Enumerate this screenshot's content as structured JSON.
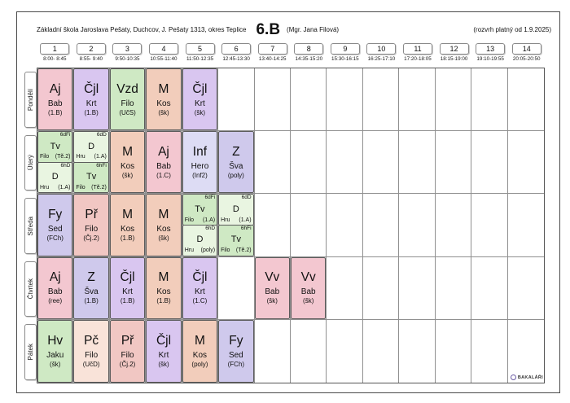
{
  "header": {
    "school": "Základní škola Jaroslava Pešaty, Duchcov, J. Pešaty 1313, okres Teplice",
    "class_name": "6.B",
    "teacher": "(Mgr. Jana Filová)",
    "validity": "(rozvrh platný od 1.9.2025)"
  },
  "colors": {
    "pink": "#f3c7d0",
    "purple": "#d9c6f0",
    "lavender": "#cfc9ec",
    "green": "#cfe9c4",
    "palegreen": "#e9f5e1",
    "salmon": "#f2cdbb",
    "periwinkle": "#dddcf4",
    "peach": "#f9e3d9",
    "rose": "#f1c7c3"
  },
  "periods": [
    {
      "num": "1",
      "time": "8:00- 8:45"
    },
    {
      "num": "2",
      "time": "8:55- 9:40"
    },
    {
      "num": "3",
      "time": "9:50-10:35"
    },
    {
      "num": "4",
      "time": "10:55-11:40"
    },
    {
      "num": "5",
      "time": "11:50-12:35"
    },
    {
      "num": "6",
      "time": "12:45-13:30"
    },
    {
      "num": "7",
      "time": "13:40-14:25"
    },
    {
      "num": "8",
      "time": "14:35-15:20"
    },
    {
      "num": "9",
      "time": "15:30-16:15"
    },
    {
      "num": "10",
      "time": "16:25-17:10"
    },
    {
      "num": "11",
      "time": "17:20-18:05"
    },
    {
      "num": "12",
      "time": "18:15-19:00"
    },
    {
      "num": "13",
      "time": "19:10-19:55"
    },
    {
      "num": "14",
      "time": "20:05-20:50"
    }
  ],
  "days": [
    {
      "label": "Pondělí",
      "lessons": [
        {
          "col": 1,
          "subject": "Aj",
          "teacher": "Bab",
          "room": "(1.B)",
          "color": "pink"
        },
        {
          "col": 2,
          "subject": "Čjl",
          "teacher": "Krt",
          "room": "(1.B)",
          "color": "purple"
        },
        {
          "col": 3,
          "subject": "Vzd",
          "teacher": "Filo",
          "room": "(UčS)",
          "color": "green"
        },
        {
          "col": 4,
          "subject": "M",
          "teacher": "Kos",
          "room": "(šk)",
          "color": "salmon"
        },
        {
          "col": 5,
          "subject": "Čjl",
          "teacher": "Krt",
          "room": "(šk)",
          "color": "purple"
        }
      ]
    },
    {
      "label": "Úterý",
      "lessons": [
        {
          "col": 1,
          "split": true,
          "top": {
            "group": "6dFi",
            "subject": "Tv",
            "teacher": "Filo",
            "room": "(Tě.2)",
            "color": "green"
          },
          "bottom": {
            "group": "6hD",
            "subject": "D",
            "teacher": "Hru",
            "room": "(1.A)",
            "color": "palegreen"
          }
        },
        {
          "col": 2,
          "split": true,
          "top": {
            "group": "6dD",
            "subject": "D",
            "teacher": "Hru",
            "room": "(1.A)",
            "color": "palegreen"
          },
          "bottom": {
            "group": "6hFi",
            "subject": "Tv",
            "teacher": "Filo",
            "room": "(Tě.2)",
            "color": "green"
          }
        },
        {
          "col": 3,
          "subject": "M",
          "teacher": "Kos",
          "room": "(šk)",
          "color": "salmon"
        },
        {
          "col": 4,
          "subject": "Aj",
          "teacher": "Bab",
          "room": "(1.C)",
          "color": "pink"
        },
        {
          "col": 5,
          "subject": "Inf",
          "teacher": "Hero",
          "room": "(Inf2)",
          "color": "periwinkle"
        },
        {
          "col": 6,
          "subject": "Z",
          "teacher": "Šva",
          "room": "(poly)",
          "color": "lavender"
        }
      ]
    },
    {
      "label": "Středa",
      "lessons": [
        {
          "col": 1,
          "subject": "Fy",
          "teacher": "Sed",
          "room": "(FCh)",
          "color": "lavender"
        },
        {
          "col": 2,
          "subject": "Př",
          "teacher": "Filo",
          "room": "(Čj.2)",
          "color": "rose"
        },
        {
          "col": 3,
          "subject": "M",
          "teacher": "Kos",
          "room": "(1.B)",
          "color": "salmon"
        },
        {
          "col": 4,
          "subject": "M",
          "teacher": "Kos",
          "room": "(šk)",
          "color": "salmon"
        },
        {
          "col": 5,
          "split": true,
          "top": {
            "group": "6dFi",
            "subject": "Tv",
            "teacher": "Filo",
            "room": "(1.A)",
            "color": "green"
          },
          "bottom": {
            "group": "6hD",
            "subject": "D",
            "teacher": "Hru",
            "room": "(poly)",
            "color": "palegreen"
          }
        },
        {
          "col": 6,
          "split": true,
          "top": {
            "group": "6dD",
            "subject": "D",
            "teacher": "Hru",
            "room": "(1.A)",
            "color": "palegreen"
          },
          "bottom": {
            "group": "6hFi",
            "subject": "Tv",
            "teacher": "Filo",
            "room": "(Tě.2)",
            "color": "green"
          }
        }
      ]
    },
    {
      "label": "Čtvrtek",
      "lessons": [
        {
          "col": 1,
          "subject": "Aj",
          "teacher": "Bab",
          "room": "(ree)",
          "color": "pink"
        },
        {
          "col": 2,
          "subject": "Z",
          "teacher": "Šva",
          "room": "(1.B)",
          "color": "lavender"
        },
        {
          "col": 3,
          "subject": "Čjl",
          "teacher": "Krt",
          "room": "(1.B)",
          "color": "purple"
        },
        {
          "col": 4,
          "subject": "M",
          "teacher": "Kos",
          "room": "(1.B)",
          "color": "salmon"
        },
        {
          "col": 5,
          "subject": "Čjl",
          "teacher": "Krt",
          "room": "(1.C)",
          "color": "purple"
        },
        {
          "col": 7,
          "subject": "Vv",
          "teacher": "Bab",
          "room": "(šk)",
          "color": "pink"
        },
        {
          "col": 8,
          "subject": "Vv",
          "teacher": "Bab",
          "room": "(šk)",
          "color": "pink"
        }
      ]
    },
    {
      "label": "Pátek",
      "lessons": [
        {
          "col": 1,
          "subject": "Hv",
          "teacher": "Jaku",
          "room": "(šk)",
          "color": "green"
        },
        {
          "col": 2,
          "subject": "Pč",
          "teacher": "Filo",
          "room": "(UčD)",
          "color": "peach"
        },
        {
          "col": 3,
          "subject": "Př",
          "teacher": "Filo",
          "room": "(Čj.2)",
          "color": "rose"
        },
        {
          "col": 4,
          "subject": "Čjl",
          "teacher": "Krt",
          "room": "(šk)",
          "color": "purple"
        },
        {
          "col": 5,
          "subject": "M",
          "teacher": "Kos",
          "room": "(poly)",
          "color": "salmon"
        },
        {
          "col": 6,
          "subject": "Fy",
          "teacher": "Sed",
          "room": "(FCh)",
          "color": "lavender"
        }
      ]
    }
  ],
  "footer": {
    "logo": "BAKALÁŘI"
  }
}
